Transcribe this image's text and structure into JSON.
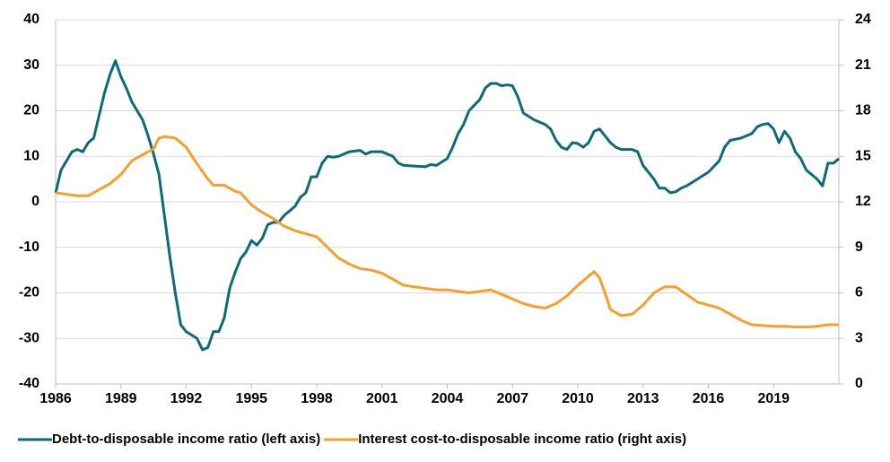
{
  "chart_data": {
    "type": "line",
    "xlim": [
      1986,
      2022
    ],
    "xticks": [
      1986,
      1989,
      1992,
      1995,
      1998,
      2001,
      2004,
      2007,
      2010,
      2013,
      2016,
      2019
    ],
    "ylim": [
      -40,
      40
    ],
    "yticks": [
      -40,
      -30,
      -20,
      -10,
      0,
      10,
      20,
      30,
      40
    ],
    "y2lim": [
      0,
      24
    ],
    "y2ticks": [
      0,
      3,
      6,
      9,
      12,
      15,
      18,
      21,
      24
    ],
    "grid": true,
    "legend": "bottom",
    "series": [
      {
        "name": "Debt-to-disposable income ratio (left axis)",
        "color": "#0f6a78",
        "x": [
          1986,
          1986.25,
          1986.75,
          1987,
          1987.25,
          1987.5,
          1987.75,
          1988,
          1988.25,
          1988.5,
          1988.75,
          1989,
          1989.25,
          1989.5,
          1990,
          1990.25,
          1990.5,
          1990.75,
          1991,
          1991.25,
          1991.5,
          1991.75,
          1992,
          1992.5,
          1992.75,
          1993,
          1993.25,
          1993.5,
          1993.75,
          1994,
          1994.25,
          1994.5,
          1994.75,
          1995,
          1995.25,
          1995.5,
          1995.75,
          1996,
          1996.25,
          1996.5,
          1997,
          1997.25,
          1997.5,
          1997.75,
          1998,
          1998.25,
          1998.5,
          1998.75,
          1999,
          1999.5,
          2000,
          2000.25,
          2000.5,
          2001,
          2001.5,
          2001.75,
          2002,
          2003,
          2003.25,
          2003.5,
          2004,
          2004.25,
          2004.5,
          2004.75,
          2005,
          2005.5,
          2005.75,
          2006,
          2006.25,
          2006.5,
          2006.75,
          2007,
          2007.25,
          2007.5,
          2008,
          2008.5,
          2008.75,
          2009,
          2009.25,
          2009.5,
          2009.75,
          2010,
          2010.25,
          2010.5,
          2010.75,
          2011,
          2011.25,
          2011.5,
          2011.75,
          2012,
          2012.5,
          2012.75,
          2013,
          2013.25,
          2013.5,
          2013.75,
          2014,
          2014.25,
          2014.5,
          2014.75,
          2015,
          2015.5,
          2016,
          2016.5,
          2016.75,
          2017,
          2017.5,
          2017.75,
          2018,
          2018.25,
          2018.5,
          2018.75,
          2019,
          2019.25,
          2019.5,
          2019.75,
          2020,
          2020.25,
          2020.5,
          2020.75,
          2021,
          2021.25,
          2021.5,
          2021.75,
          2022
        ],
        "values": [
          2,
          7,
          11,
          11.5,
          11,
          13,
          14,
          19,
          24,
          28,
          31,
          27.5,
          25,
          22,
          18,
          14.5,
          10.5,
          6,
          -3,
          -12,
          -20,
          -27,
          -28.5,
          -30,
          -32.5,
          -32,
          -28.5,
          -28.5,
          -25.5,
          -19,
          -15.5,
          -12.5,
          -11,
          -8.5,
          -9.5,
          -8,
          -5,
          -4.5,
          -4.5,
          -3,
          -1,
          1,
          2,
          5.5,
          5.5,
          8.5,
          10,
          9.8,
          10,
          11,
          11.3,
          10.5,
          11,
          11,
          10,
          8.5,
          8,
          7.7,
          8.2,
          8,
          9.5,
          12,
          15,
          17,
          20,
          22.5,
          25,
          26,
          26,
          25.5,
          25.7,
          25.5,
          23,
          19.5,
          18,
          17,
          16,
          13.5,
          12,
          11.5,
          13,
          12.8,
          12,
          13,
          15.5,
          16,
          14.5,
          13,
          12,
          11.5,
          11.5,
          11,
          8,
          6.5,
          5,
          3,
          3,
          2,
          2.2,
          3,
          3.5,
          5,
          6.5,
          9,
          12,
          13.5,
          14,
          14.5,
          15,
          16.5,
          17,
          17.2,
          16,
          13,
          15.5,
          14,
          11,
          9.5,
          7,
          6,
          5,
          3.5,
          8.5,
          8.5,
          9.5
        ]
      },
      {
        "name": "Interest cost-to-disposable income ratio (right axis)",
        "color": "#f5a02a",
        "axis": "y2",
        "x": [
          1986,
          1986.5,
          1987,
          1987.5,
          1988,
          1988.5,
          1989,
          1989.5,
          1990,
          1990.5,
          1990.75,
          1991,
          1991.5,
          1992,
          1992.5,
          1993,
          1993.25,
          1993.75,
          1994.25,
          1994.5,
          1995,
          1995.5,
          1996,
          1996.5,
          1997,
          1997.5,
          1998,
          1998.5,
          1999,
          1999.5,
          2000,
          2000.5,
          2001,
          2001.5,
          2002,
          2002.5,
          2003,
          2003.5,
          2004,
          2004.5,
          2005,
          2005.5,
          2006,
          2006.5,
          2007,
          2007.5,
          2008,
          2008.5,
          2009,
          2009.5,
          2010,
          2010.5,
          2010.75,
          2011,
          2011.25,
          2011.5,
          2012,
          2012.5,
          2013,
          2013.5,
          2014,
          2014.5,
          2015,
          2015.5,
          2016,
          2016.5,
          2017,
          2017.5,
          2018,
          2018.5,
          2019,
          2019.5,
          2020,
          2020.5,
          2021,
          2021.5,
          2022
        ],
        "values": [
          12.6,
          12.5,
          12.4,
          12.4,
          12.8,
          13.2,
          13.8,
          14.7,
          15.1,
          15.5,
          16.2,
          16.3,
          16.2,
          15.6,
          14.5,
          13.5,
          13.1,
          13.1,
          12.7,
          12.6,
          11.8,
          11.3,
          10.9,
          10.4,
          10.1,
          9.9,
          9.7,
          9,
          8.3,
          7.9,
          7.6,
          7.5,
          7.3,
          6.9,
          6.5,
          6.4,
          6.3,
          6.2,
          6.2,
          6.1,
          6,
          6.1,
          6.2,
          5.9,
          5.6,
          5.3,
          5.1,
          5,
          5.3,
          5.8,
          6.5,
          7.1,
          7.4,
          7,
          6,
          4.9,
          4.5,
          4.6,
          5.2,
          6,
          6.4,
          6.4,
          5.9,
          5.4,
          5.2,
          5,
          4.6,
          4.2,
          3.9,
          3.85,
          3.8,
          3.8,
          3.75,
          3.75,
          3.8,
          3.9,
          3.9
        ]
      }
    ]
  }
}
